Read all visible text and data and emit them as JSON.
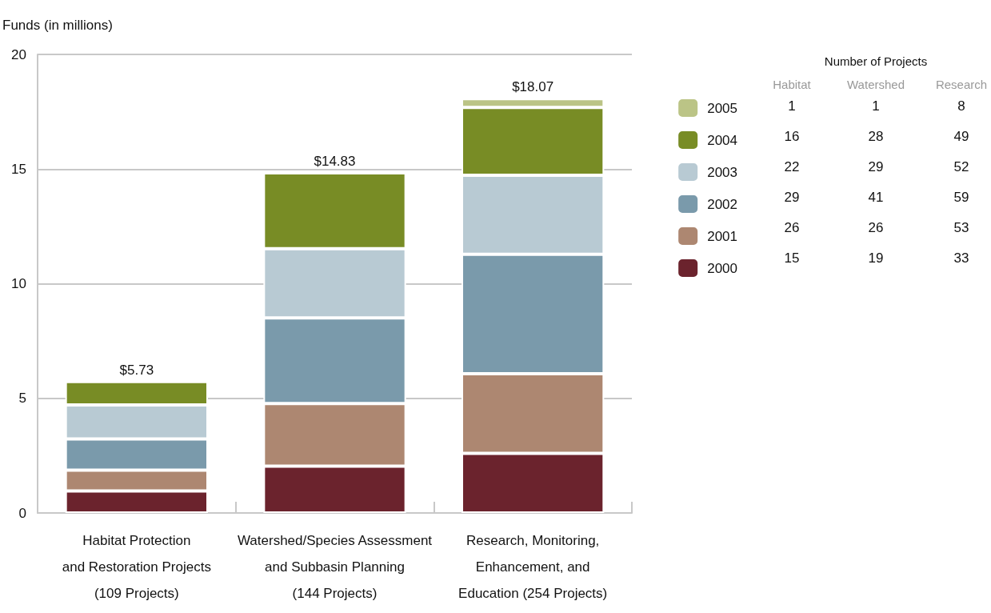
{
  "chart_data": {
    "type": "bar",
    "stacked": true,
    "ylabel": "Funds (in millions)",
    "categories": [
      "Habitat Protection\nand Restoration Projects\n(109 Projects)",
      "Watershed/Species Assessment\nand Subbasin Planning\n(144 Projects)",
      "Research, Monitoring,\nEnhancement, and\nEducation (254 Projects)"
    ],
    "series": [
      {
        "name": "2000",
        "color": "#6b232d",
        "values": [
          0.96,
          2.04,
          2.6
        ]
      },
      {
        "name": "2001",
        "color": "#ad8771",
        "values": [
          0.91,
          2.73,
          3.47
        ]
      },
      {
        "name": "2002",
        "color": "#7a9aab",
        "values": [
          1.36,
          3.74,
          5.21
        ]
      },
      {
        "name": "2003",
        "color": "#b8cad3",
        "values": [
          1.48,
          3.02,
          3.45
        ]
      },
      {
        "name": "2004",
        "color": "#788c25",
        "values": [
          1.02,
          3.3,
          2.96
        ]
      },
      {
        "name": "2005",
        "color": "#bbc486",
        "values": [
          null,
          null,
          0.38
        ]
      }
    ],
    "totals": [
      "$5.73",
      "$14.83",
      "$18.07"
    ],
    "ylim": [
      0,
      20
    ],
    "yticks": [
      0,
      5,
      10,
      15,
      20
    ],
    "grid": "y",
    "legend": "top right",
    "annotations": [
      "Number of Projects",
      "Habitat",
      "Watershed",
      "Research",
      "1",
      "1",
      "8",
      "16",
      "28",
      "49",
      "22",
      "29",
      "52",
      "29",
      "41",
      "59",
      "26",
      "26",
      "53",
      "15",
      "19",
      "33"
    ]
  }
}
